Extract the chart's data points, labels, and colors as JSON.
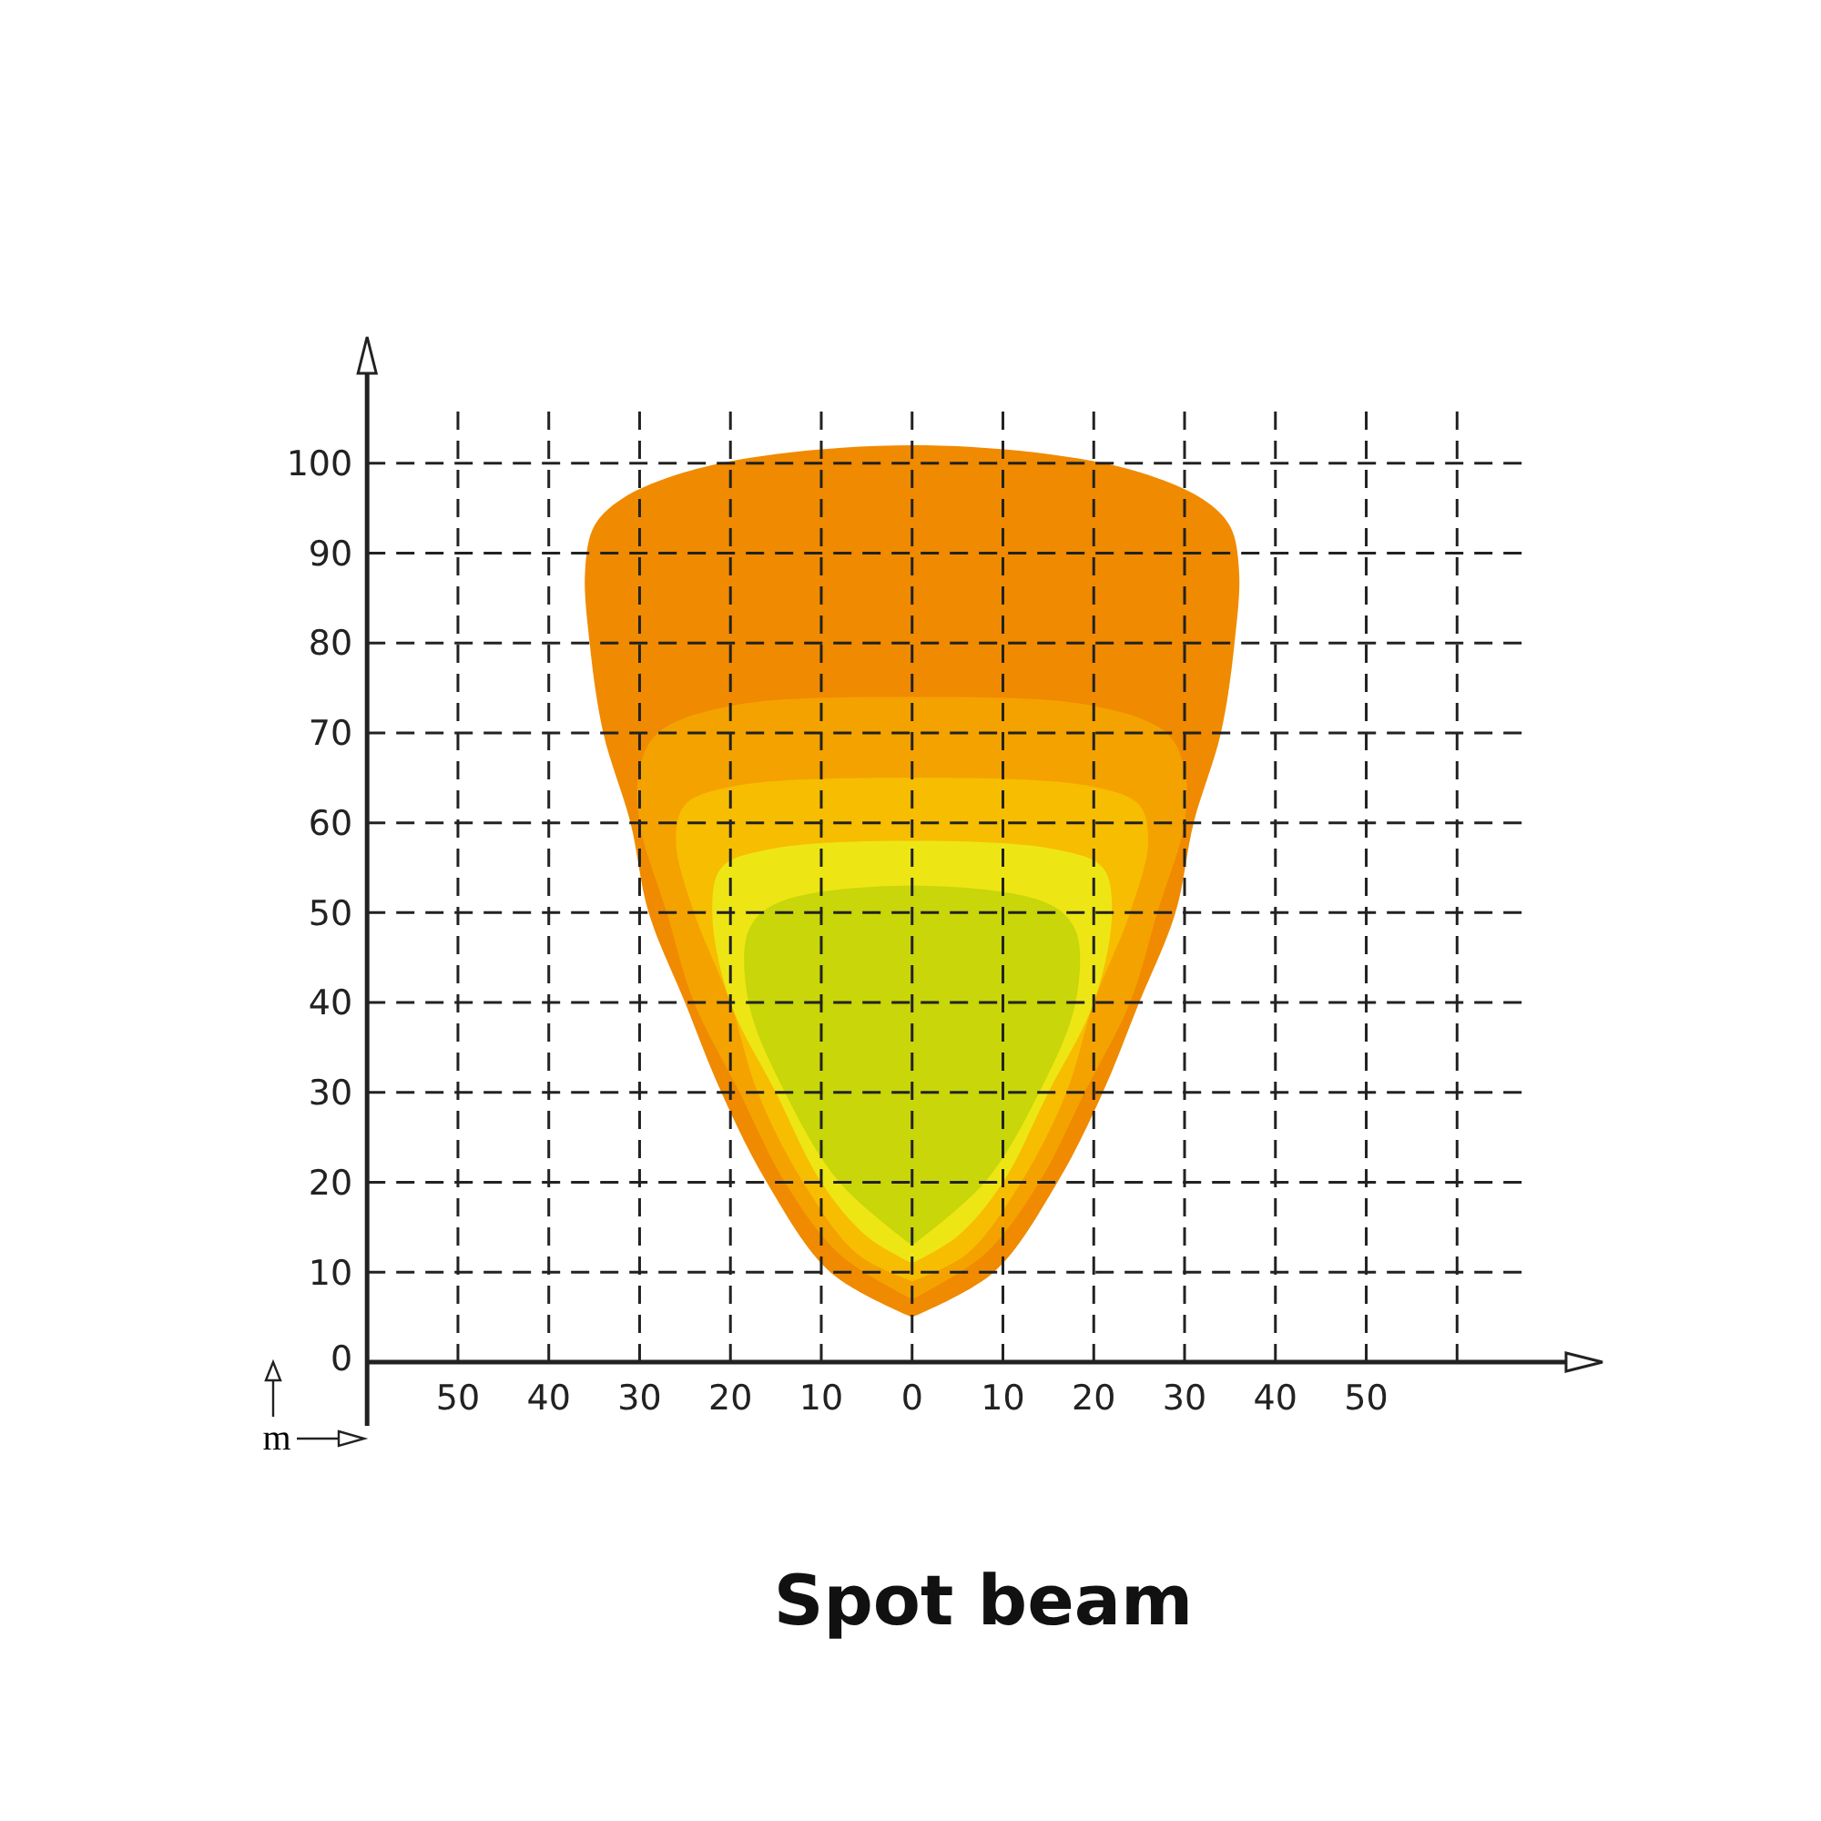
{
  "chart_data": {
    "type": "area",
    "title": "Spot beam",
    "xlabel": "m",
    "xlim": [
      -60,
      72
    ],
    "ylim": [
      0,
      110
    ],
    "xticks": [
      {
        "value": -50,
        "label": "50"
      },
      {
        "value": -40,
        "label": "40"
      },
      {
        "value": -30,
        "label": "30"
      },
      {
        "value": -20,
        "label": "20"
      },
      {
        "value": -10,
        "label": "10"
      },
      0,
      {
        "value": 10,
        "label": "10"
      },
      {
        "value": 20,
        "label": "20"
      },
      {
        "value": 30,
        "label": "30"
      },
      {
        "value": 40,
        "label": "40"
      },
      {
        "value": 50,
        "label": "50"
      },
      {
        "value": 60,
        "label": null
      }
    ],
    "yticks": [
      0,
      10,
      20,
      30,
      40,
      50,
      60,
      70,
      80,
      90,
      100
    ],
    "grid": true,
    "line_style": "dashed",
    "series": [
      {
        "color": "#f08a00",
        "x": [
          0,
          -9,
          -16,
          -21,
          -25,
          -29,
          -31,
          -34,
          -35.5,
          -36,
          -35,
          -32,
          -25,
          -15,
          0,
          15,
          25,
          32,
          35,
          36,
          35.5,
          34,
          31,
          29,
          25,
          21,
          16,
          9,
          0
        ],
        "values": [
          5,
          10,
          20,
          30,
          40,
          50,
          60,
          70,
          80,
          88,
          93,
          96,
          99,
          101,
          102,
          101,
          99,
          96,
          93,
          88,
          80,
          70,
          60,
          50,
          40,
          30,
          20,
          10,
          5
        ]
      },
      {
        "color": "#f4a200",
        "x": [
          0,
          -8,
          -14,
          -19,
          -24,
          -27,
          -30,
          -30,
          -28,
          -20,
          0,
          20,
          28,
          30,
          30,
          27,
          24,
          19,
          14,
          8,
          0
        ],
        "values": [
          7,
          12,
          20,
          30,
          40,
          50,
          60,
          66,
          70,
          73,
          74,
          73,
          70,
          66,
          60,
          50,
          40,
          30,
          20,
          12,
          7
        ]
      },
      {
        "color": "#f7bd00",
        "x": [
          0,
          -6,
          -12,
          -17,
          -20,
          -24,
          -26,
          -25,
          -20,
          0,
          20,
          25,
          26,
          24,
          20,
          17,
          12,
          6,
          0
        ],
        "values": [
          9,
          12,
          20,
          30,
          40,
          50,
          58,
          62,
          64,
          65,
          64,
          62,
          58,
          50,
          40,
          30,
          20,
          12,
          9
        ]
      },
      {
        "color": "#ede614",
        "x": [
          0,
          -5,
          -10,
          -15,
          -20,
          -22,
          -21,
          -16,
          0,
          16,
          21,
          22,
          20,
          15,
          10,
          5,
          0
        ],
        "values": [
          11,
          14,
          20,
          30,
          40,
          50,
          55,
          57,
          58,
          57,
          55,
          50,
          40,
          30,
          20,
          14,
          11
        ]
      },
      {
        "color": "#c8d60a",
        "x": [
          0,
          -8,
          -14,
          -18,
          -18,
          -15,
          0,
          15,
          18,
          18,
          14,
          8,
          0
        ],
        "values": [
          13,
          20,
          30,
          40,
          48,
          51,
          53,
          51,
          48,
          40,
          30,
          20,
          13
        ]
      }
    ]
  }
}
